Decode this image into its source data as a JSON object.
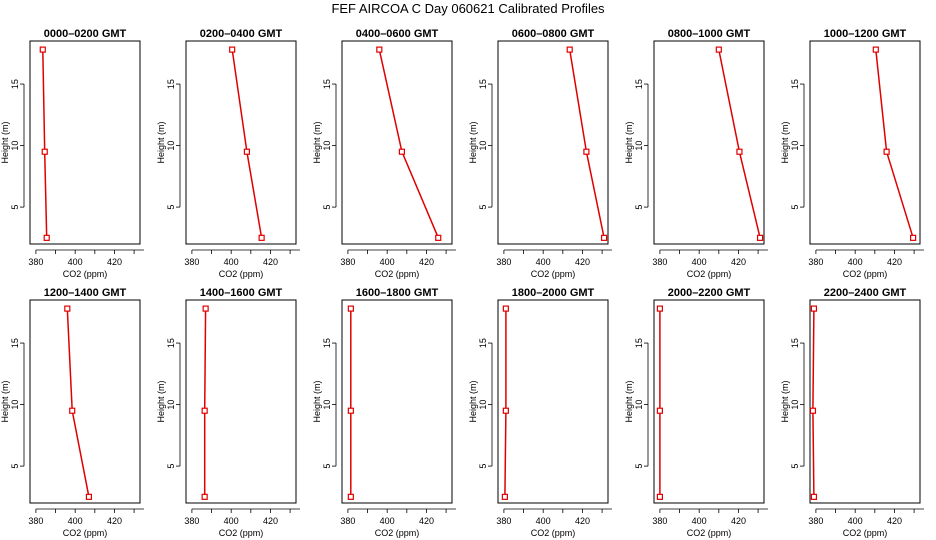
{
  "title": "FEF AIRCOA C  Day 060621  Calibrated Profiles",
  "style": {
    "line_color": "#e00000",
    "marker_color": "#e00000",
    "axis_color": "#000000"
  },
  "chart_data": [
    {
      "type": "line",
      "title": "0000–0200 GMT",
      "xlabel": "CO2 (ppm)",
      "ylabel": "Height (m)",
      "xlim": [
        377,
        433
      ],
      "ylim": [
        2,
        18.5
      ],
      "xticks": [
        380,
        400,
        420
      ],
      "yticks": [
        5,
        10,
        15
      ],
      "grid": false,
      "x": [
        383.5,
        384.5,
        385.5
      ],
      "y": [
        17.8,
        9.5,
        2.5
      ]
    },
    {
      "type": "line",
      "title": "0200–0400 GMT",
      "xlabel": "CO2 (ppm)",
      "ylabel": "Height (m)",
      "xlim": [
        377,
        433
      ],
      "ylim": [
        2,
        18.5
      ],
      "xticks": [
        380,
        400,
        420
      ],
      "yticks": [
        5,
        10,
        15
      ],
      "grid": false,
      "x": [
        400.5,
        408,
        415.5
      ],
      "y": [
        17.8,
        9.5,
        2.5
      ]
    },
    {
      "type": "line",
      "title": "0400–0600 GMT",
      "xlabel": "CO2 (ppm)",
      "ylabel": "Height (m)",
      "xlim": [
        377,
        433
      ],
      "ylim": [
        2,
        18.5
      ],
      "xticks": [
        380,
        400,
        420
      ],
      "yticks": [
        5,
        10,
        15
      ],
      "grid": false,
      "x": [
        396,
        407.5,
        426
      ],
      "y": [
        17.8,
        9.5,
        2.5
      ]
    },
    {
      "type": "line",
      "title": "0600–0800 GMT",
      "xlabel": "CO2 (ppm)",
      "ylabel": "Height (m)",
      "xlim": [
        377,
        433
      ],
      "ylim": [
        2,
        18.5
      ],
      "xticks": [
        380,
        400,
        420
      ],
      "yticks": [
        5,
        10,
        15
      ],
      "grid": false,
      "x": [
        413.5,
        422,
        431
      ],
      "y": [
        17.8,
        9.5,
        2.5
      ]
    },
    {
      "type": "line",
      "title": "0800–1000 GMT",
      "xlabel": "CO2 (ppm)",
      "ylabel": "Height (m)",
      "xlim": [
        377,
        433
      ],
      "ylim": [
        2,
        18.5
      ],
      "xticks": [
        380,
        400,
        420
      ],
      "yticks": [
        5,
        10,
        15
      ],
      "grid": false,
      "x": [
        410,
        420.5,
        431
      ],
      "y": [
        17.8,
        9.5,
        2.5
      ]
    },
    {
      "type": "line",
      "title": "1000–1200 GMT",
      "xlabel": "CO2 (ppm)",
      "ylabel": "Height (m)",
      "xlim": [
        377,
        433
      ],
      "ylim": [
        2,
        18.5
      ],
      "xticks": [
        380,
        400,
        420
      ],
      "yticks": [
        5,
        10,
        15
      ],
      "grid": false,
      "x": [
        410.5,
        416,
        429.5
      ],
      "y": [
        17.8,
        9.5,
        2.5
      ]
    },
    {
      "type": "line",
      "title": "1200–1400 GMT",
      "xlabel": "CO2 (ppm)",
      "ylabel": "Height (m)",
      "xlim": [
        377,
        433
      ],
      "ylim": [
        2,
        18.5
      ],
      "xticks": [
        380,
        400,
        420
      ],
      "yticks": [
        5,
        10,
        15
      ],
      "grid": false,
      "x": [
        396,
        398.5,
        407
      ],
      "y": [
        17.8,
        9.5,
        2.5
      ]
    },
    {
      "type": "line",
      "title": "1400–1600 GMT",
      "xlabel": "CO2 (ppm)",
      "ylabel": "Height (m)",
      "xlim": [
        377,
        433
      ],
      "ylim": [
        2,
        18.5
      ],
      "xticks": [
        380,
        400,
        420
      ],
      "yticks": [
        5,
        10,
        15
      ],
      "grid": false,
      "x": [
        387,
        386.5,
        386.5
      ],
      "y": [
        17.8,
        9.5,
        2.5
      ]
    },
    {
      "type": "line",
      "title": "1600–1800 GMT",
      "xlabel": "CO2 (ppm)",
      "ylabel": "Height (m)",
      "xlim": [
        377,
        433
      ],
      "ylim": [
        2,
        18.5
      ],
      "xticks": [
        380,
        400,
        420
      ],
      "yticks": [
        5,
        10,
        15
      ],
      "grid": false,
      "x": [
        381.5,
        381.5,
        381.5
      ],
      "y": [
        17.8,
        9.5,
        2.5
      ]
    },
    {
      "type": "line",
      "title": "1800–2000 GMT",
      "xlabel": "CO2 (ppm)",
      "ylabel": "Height (m)",
      "xlim": [
        377,
        433
      ],
      "ylim": [
        2,
        18.5
      ],
      "xticks": [
        380,
        400,
        420
      ],
      "yticks": [
        5,
        10,
        15
      ],
      "grid": false,
      "x": [
        381,
        381,
        380.5
      ],
      "y": [
        17.8,
        9.5,
        2.5
      ]
    },
    {
      "type": "line",
      "title": "2000–2200 GMT",
      "xlabel": "CO2 (ppm)",
      "ylabel": "Height (m)",
      "xlim": [
        377,
        433
      ],
      "ylim": [
        2,
        18.5
      ],
      "xticks": [
        380,
        400,
        420
      ],
      "yticks": [
        5,
        10,
        15
      ],
      "grid": false,
      "x": [
        380,
        380,
        380
      ],
      "y": [
        17.8,
        9.5,
        2.5
      ]
    },
    {
      "type": "line",
      "title": "2200–2400 GMT",
      "xlabel": "CO2 (ppm)",
      "ylabel": "Height (m)",
      "xlim": [
        377,
        433
      ],
      "ylim": [
        2,
        18.5
      ],
      "xticks": [
        380,
        400,
        420
      ],
      "yticks": [
        5,
        10,
        15
      ],
      "grid": false,
      "x": [
        379,
        378.5,
        379
      ],
      "y": [
        17.8,
        9.5,
        2.5
      ]
    }
  ]
}
